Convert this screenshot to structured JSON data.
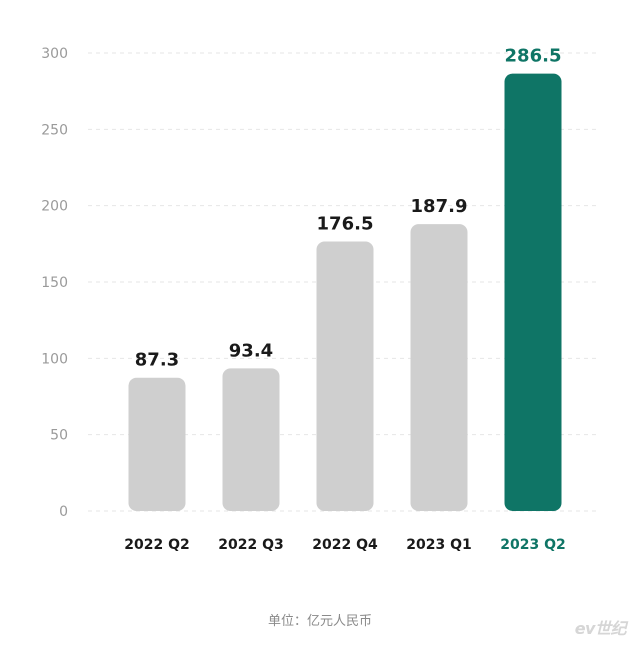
{
  "chart_data": {
    "type": "bar",
    "categories": [
      "2022 Q2",
      "2022 Q3",
      "2022 Q4",
      "2023 Q1",
      "2023 Q2"
    ],
    "values": [
      87.3,
      93.4,
      176.5,
      187.9,
      286.5
    ],
    "value_labels": [
      "87.3",
      "93.4",
      "176.5",
      "187.9",
      "286.5"
    ],
    "highlight_index": 4,
    "ylim": [
      0,
      300
    ],
    "yticks": [
      0,
      50,
      100,
      150,
      200,
      250,
      300
    ],
    "grid": true,
    "title": "",
    "xlabel": "",
    "ylabel": ""
  },
  "colors": {
    "bar": "#cfcfcf",
    "highlight": "#0f7566",
    "axis_text": "#9a9a9a",
    "label_text": "#1a1a1a",
    "grid": "#e6e6e6"
  },
  "footer": {
    "unit": "单位：亿元人民币"
  },
  "watermark": {
    "text": "ev世纪"
  }
}
